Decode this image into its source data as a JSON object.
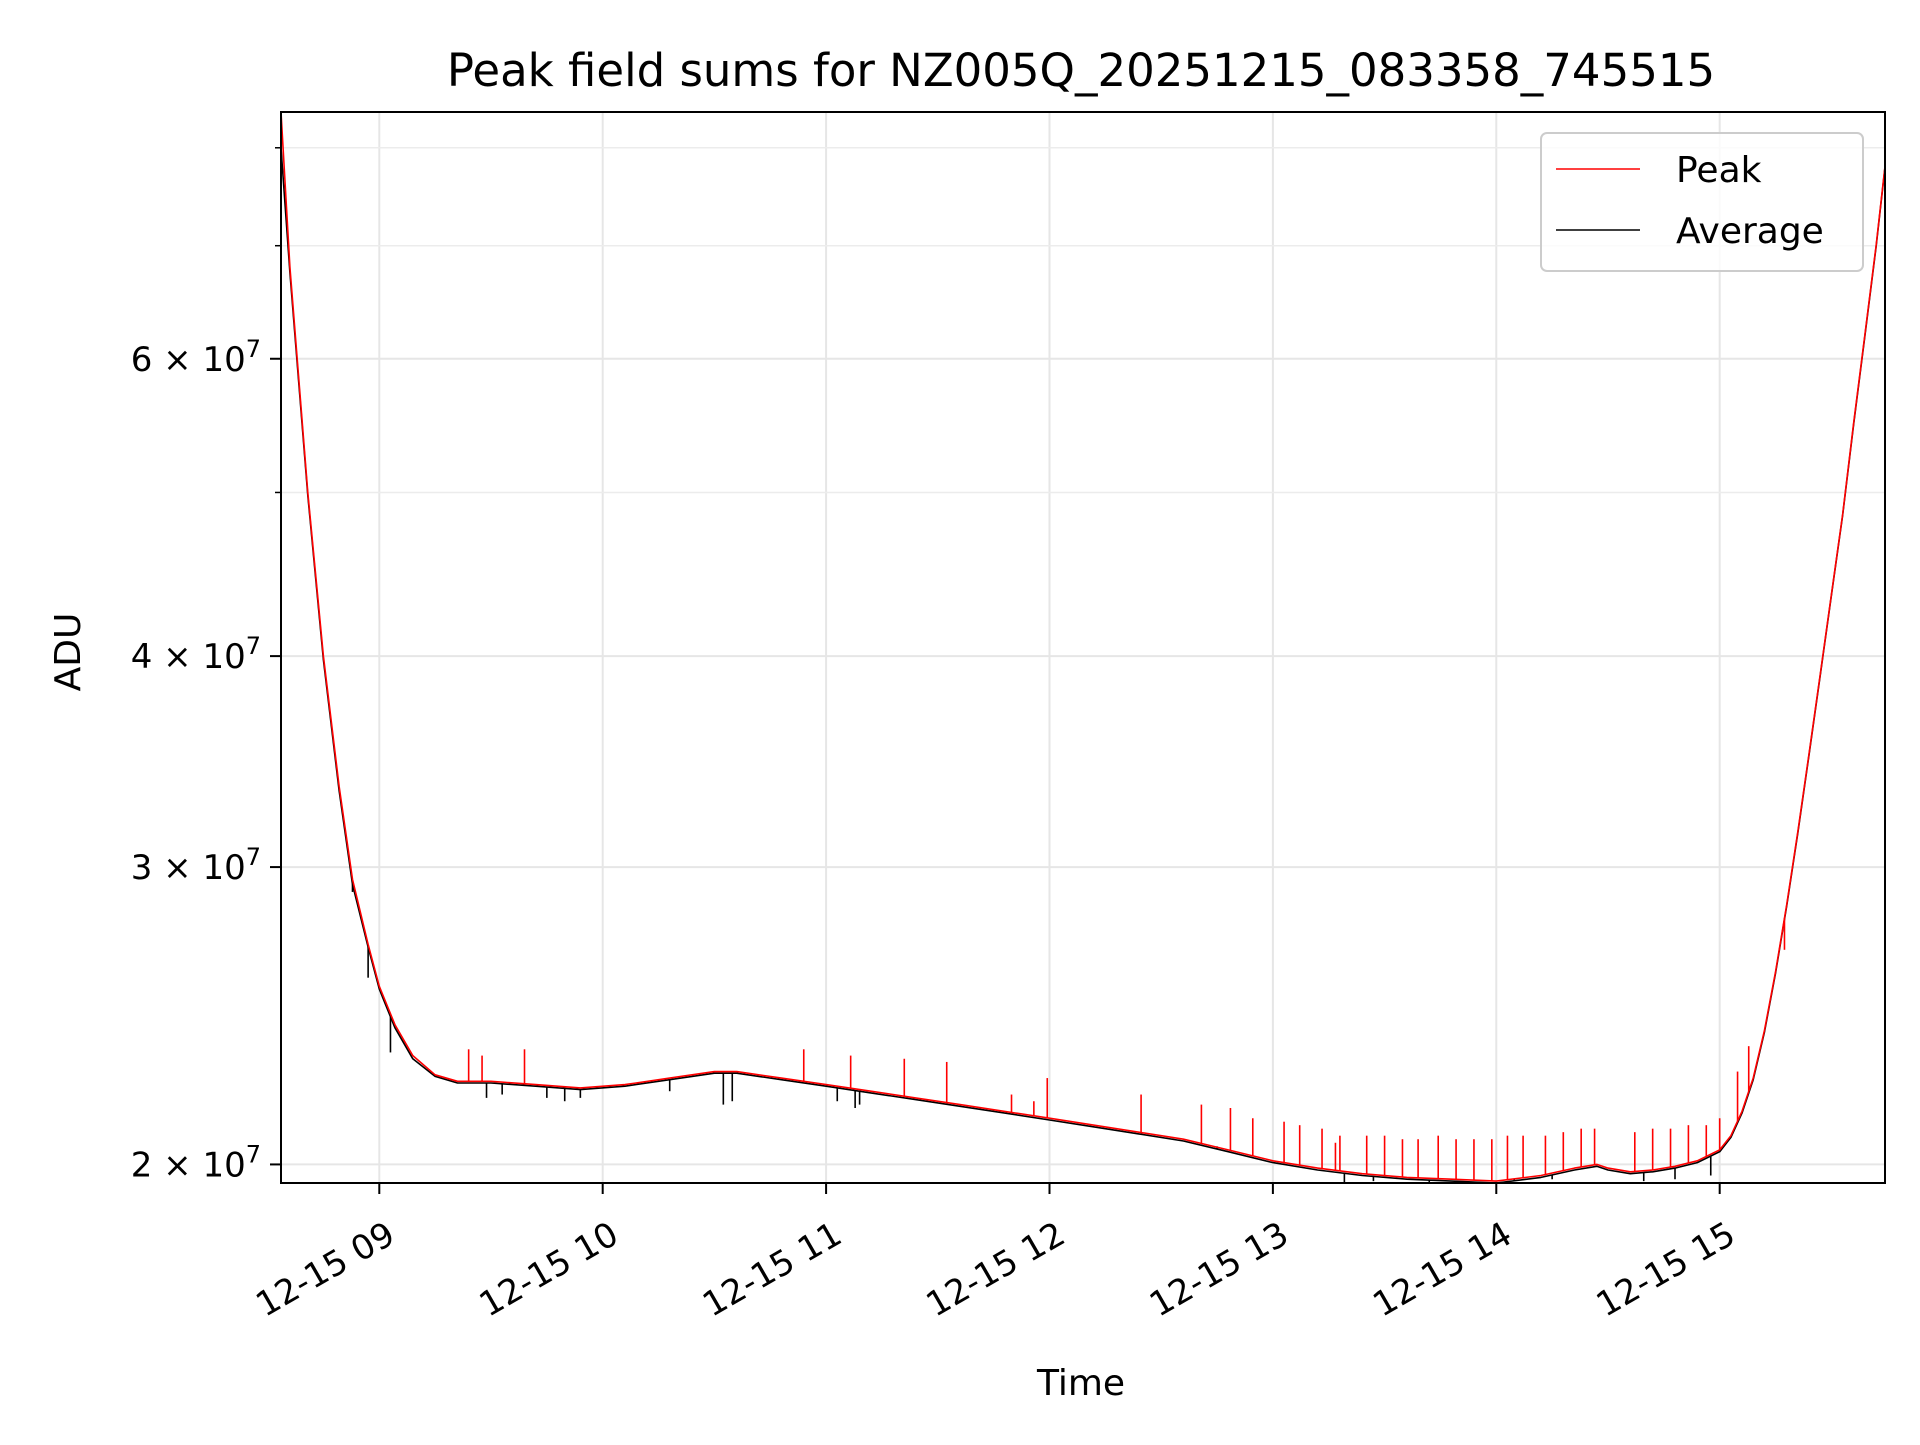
{
  "chart_data": {
    "type": "line",
    "title": "Peak field sums for NZ005Q_20251215_083358_745515",
    "xlabel": "Time",
    "ylabel": "ADU",
    "yscale": "log",
    "x_unit": "hours since 12-15 00:00",
    "xlim": [
      8.56,
      15.74
    ],
    "ylim": [
      19500000,
      84000000
    ],
    "grid": true,
    "legend_position": "top-right",
    "x_ticks": [
      {
        "value": 9,
        "label": "12-15 09"
      },
      {
        "value": 10,
        "label": "12-15 10"
      },
      {
        "value": 11,
        "label": "12-15 11"
      },
      {
        "value": 12,
        "label": "12-15 12"
      },
      {
        "value": 13,
        "label": "12-15 13"
      },
      {
        "value": 14,
        "label": "12-15 14"
      },
      {
        "value": 15,
        "label": "12-15 15"
      }
    ],
    "y_ticks": [
      {
        "value": 20000000,
        "mantissa": "2",
        "base": "10",
        "exponent": "7"
      },
      {
        "value": 30000000,
        "mantissa": "3",
        "base": "10",
        "exponent": "7"
      },
      {
        "value": 40000000,
        "mantissa": "4",
        "base": "10",
        "exponent": "7"
      },
      {
        "value": 60000000,
        "mantissa": "6",
        "base": "10",
        "exponent": "7"
      }
    ],
    "y_minor_ticks": [
      50000000,
      70000000,
      80000000
    ],
    "series": [
      {
        "name": "Peak",
        "color": "#ff0000",
        "x": [
          8.56,
          8.6,
          8.68,
          8.75,
          8.82,
          8.88,
          8.95,
          9.0,
          9.07,
          9.15,
          9.25,
          9.35,
          9.5,
          9.7,
          9.9,
          10.1,
          10.3,
          10.5,
          10.6,
          10.8,
          11.0,
          11.2,
          11.4,
          11.6,
          11.8,
          12.0,
          12.2,
          12.4,
          12.6,
          12.8,
          13.0,
          13.2,
          13.4,
          13.6,
          13.8,
          14.0,
          14.2,
          14.35,
          14.45,
          14.5,
          14.6,
          14.7,
          14.8,
          14.9,
          15.0,
          15.05,
          15.1,
          15.15,
          15.2,
          15.25,
          15.3,
          15.35,
          15.4,
          15.45,
          15.5,
          15.55,
          15.6,
          15.65,
          15.7,
          15.74
        ],
        "values": [
          84000000,
          68000000,
          50000000,
          40000000,
          33500000,
          29500000,
          27000000,
          25500000,
          24200000,
          23200000,
          22600000,
          22400000,
          22400000,
          22300000,
          22200000,
          22300000,
          22500000,
          22700000,
          22700000,
          22500000,
          22300000,
          22100000,
          21900000,
          21700000,
          21500000,
          21300000,
          21100000,
          20900000,
          20700000,
          20400000,
          20100000,
          19900000,
          19750000,
          19650000,
          19600000,
          19550000,
          19700000,
          19900000,
          20000000,
          19900000,
          19800000,
          19850000,
          19950000,
          20100000,
          20400000,
          20800000,
          21500000,
          22500000,
          24000000,
          26000000,
          28500000,
          31500000,
          35000000,
          39000000,
          43500000,
          48500000,
          55000000,
          62000000,
          70000000,
          78000000
        ],
        "spikes": [
          {
            "x": 9.4,
            "y": 23400000
          },
          {
            "x": 9.46,
            "y": 23200000
          },
          {
            "x": 9.65,
            "y": 23400000
          },
          {
            "x": 10.9,
            "y": 23400000
          },
          {
            "x": 11.11,
            "y": 23200000
          },
          {
            "x": 11.35,
            "y": 23100000
          },
          {
            "x": 11.54,
            "y": 23000000
          },
          {
            "x": 11.83,
            "y": 22000000
          },
          {
            "x": 11.93,
            "y": 21800000
          },
          {
            "x": 11.99,
            "y": 22500000
          },
          {
            "x": 12.41,
            "y": 22000000
          },
          {
            "x": 12.68,
            "y": 21700000
          },
          {
            "x": 12.81,
            "y": 21600000
          },
          {
            "x": 12.91,
            "y": 21300000
          },
          {
            "x": 13.05,
            "y": 21200000
          },
          {
            "x": 13.12,
            "y": 21100000
          },
          {
            "x": 13.22,
            "y": 21000000
          },
          {
            "x": 13.28,
            "y": 20600000
          },
          {
            "x": 13.3,
            "y": 20800000
          },
          {
            "x": 13.42,
            "y": 20800000
          },
          {
            "x": 13.5,
            "y": 20800000
          },
          {
            "x": 13.58,
            "y": 20700000
          },
          {
            "x": 13.65,
            "y": 20700000
          },
          {
            "x": 13.74,
            "y": 20800000
          },
          {
            "x": 13.82,
            "y": 20700000
          },
          {
            "x": 13.9,
            "y": 20700000
          },
          {
            "x": 13.98,
            "y": 20700000
          },
          {
            "x": 14.05,
            "y": 20800000
          },
          {
            "x": 14.12,
            "y": 20800000
          },
          {
            "x": 14.22,
            "y": 20800000
          },
          {
            "x": 14.3,
            "y": 20900000
          },
          {
            "x": 14.38,
            "y": 21000000
          },
          {
            "x": 14.44,
            "y": 21000000
          },
          {
            "x": 14.62,
            "y": 20900000
          },
          {
            "x": 14.7,
            "y": 21000000
          },
          {
            "x": 14.78,
            "y": 21000000
          },
          {
            "x": 14.86,
            "y": 21100000
          },
          {
            "x": 14.94,
            "y": 21100000
          },
          {
            "x": 15.0,
            "y": 21300000
          },
          {
            "x": 15.08,
            "y": 22700000
          },
          {
            "x": 15.13,
            "y": 23500000
          },
          {
            "x": 15.29,
            "y": 26800000
          }
        ]
      },
      {
        "name": "Average",
        "color": "#000000",
        "x": [
          8.56,
          8.6,
          8.68,
          8.75,
          8.82,
          8.88,
          8.95,
          9.0,
          9.07,
          9.15,
          9.25,
          9.35,
          9.5,
          9.7,
          9.9,
          10.1,
          10.3,
          10.5,
          10.6,
          10.8,
          11.0,
          11.2,
          11.4,
          11.6,
          11.8,
          12.0,
          12.2,
          12.4,
          12.6,
          12.8,
          13.0,
          13.2,
          13.4,
          13.6,
          13.8,
          14.0,
          14.2,
          14.35,
          14.45,
          14.5,
          14.6,
          14.7,
          14.8,
          14.9,
          15.0,
          15.05,
          15.1,
          15.15,
          15.2,
          15.25,
          15.3,
          15.35,
          15.4,
          15.45,
          15.5,
          15.55,
          15.6,
          15.65,
          15.7,
          15.74
        ],
        "values": [
          80000000,
          67500000,
          49800000,
          39800000,
          33300000,
          29300000,
          26900000,
          25400000,
          24100000,
          23100000,
          22550000,
          22350000,
          22350000,
          22250000,
          22150000,
          22250000,
          22450000,
          22650000,
          22650000,
          22450000,
          22250000,
          22050000,
          21850000,
          21650000,
          21450000,
          21250000,
          21050000,
          20850000,
          20650000,
          20350000,
          20050000,
          19850000,
          19700000,
          19600000,
          19550000,
          19500000,
          19650000,
          19850000,
          19950000,
          19850000,
          19750000,
          19800000,
          19900000,
          20050000,
          20350000,
          20750000,
          21450000,
          22450000,
          23950000,
          25950000,
          28450000,
          31450000,
          34950000,
          38950000,
          43450000,
          48450000,
          54900000,
          61900000,
          69900000,
          77900000
        ],
        "spikes": [
          {
            "x": 8.88,
            "y": 29000000
          },
          {
            "x": 8.95,
            "y": 25800000
          },
          {
            "x": 9.05,
            "y": 23300000
          },
          {
            "x": 9.48,
            "y": 21900000
          },
          {
            "x": 9.55,
            "y": 22000000
          },
          {
            "x": 9.75,
            "y": 21900000
          },
          {
            "x": 9.83,
            "y": 21800000
          },
          {
            "x": 9.9,
            "y": 21900000
          },
          {
            "x": 10.3,
            "y": 22100000
          },
          {
            "x": 10.54,
            "y": 21700000
          },
          {
            "x": 10.58,
            "y": 21800000
          },
          {
            "x": 11.05,
            "y": 21800000
          },
          {
            "x": 11.13,
            "y": 21600000
          },
          {
            "x": 11.15,
            "y": 21700000
          },
          {
            "x": 12.75,
            "y": 20500000
          },
          {
            "x": 13.32,
            "y": 19500000
          },
          {
            "x": 13.45,
            "y": 19550000
          },
          {
            "x": 13.7,
            "y": 19500000
          },
          {
            "x": 13.86,
            "y": 19500000
          },
          {
            "x": 14.08,
            "y": 19600000
          },
          {
            "x": 14.25,
            "y": 19600000
          },
          {
            "x": 14.66,
            "y": 19550000
          },
          {
            "x": 14.8,
            "y": 19600000
          },
          {
            "x": 14.96,
            "y": 19700000
          }
        ]
      }
    ]
  }
}
